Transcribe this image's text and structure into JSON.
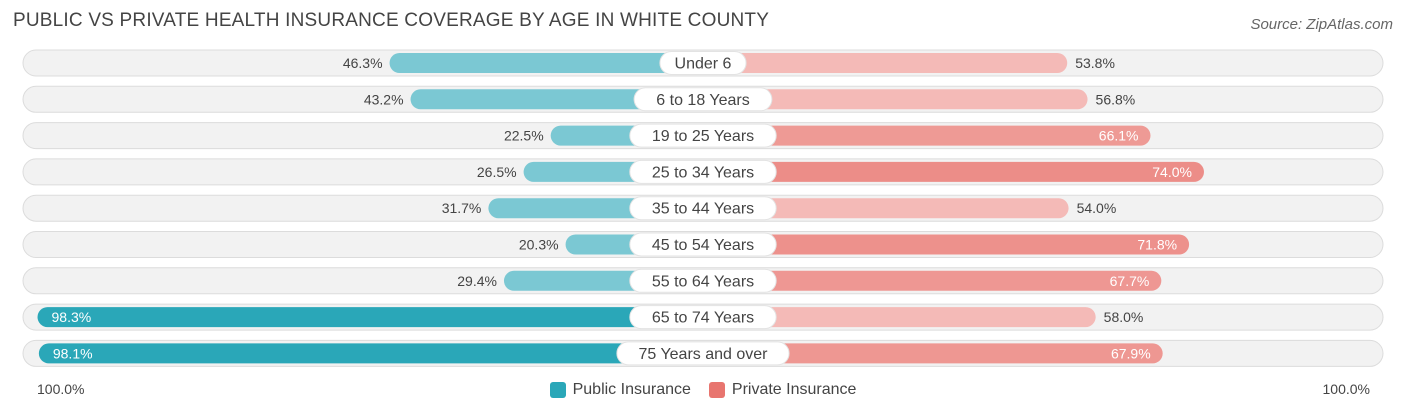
{
  "chart_data": {
    "type": "bar",
    "orientation": "horizontal-diverging",
    "title": "PUBLIC VS PRIVATE HEALTH INSURANCE COVERAGE BY AGE IN WHITE COUNTY",
    "source": "Source: ZipAtlas.com",
    "categories": [
      "Under 6",
      "6 to 18 Years",
      "19 to 25 Years",
      "25 to 34 Years",
      "35 to 44 Years",
      "45 to 54 Years",
      "55 to 64 Years",
      "65 to 74 Years",
      "75 Years and over"
    ],
    "series": [
      {
        "name": "Public Insurance",
        "color": "#2aa7b8",
        "values": [
          46.3,
          43.2,
          22.5,
          26.5,
          31.7,
          20.3,
          29.4,
          98.3,
          98.1
        ],
        "labels": [
          "46.3%",
          "43.2%",
          "22.5%",
          "26.5%",
          "31.7%",
          "20.3%",
          "29.4%",
          "98.3%",
          "98.1%"
        ]
      },
      {
        "name": "Private Insurance",
        "color": "#e8756f",
        "values": [
          53.8,
          56.8,
          66.1,
          74.0,
          54.0,
          71.8,
          67.7,
          58.0,
          67.9
        ],
        "labels": [
          "53.8%",
          "56.8%",
          "66.1%",
          "74.0%",
          "54.0%",
          "71.8%",
          "67.7%",
          "58.0%",
          "67.9%"
        ]
      }
    ],
    "xlim": [
      0,
      100
    ],
    "axis_left_label": "100.0%",
    "axis_right_label": "100.0%",
    "legend_position": "bottom-center"
  }
}
